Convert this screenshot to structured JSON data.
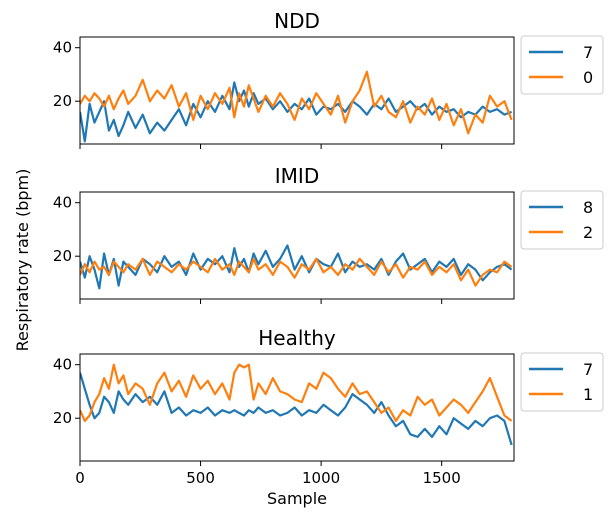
{
  "chart_data": [
    {
      "type": "line",
      "title": "NDD",
      "xlim": [
        0,
        1800
      ],
      "ylim": [
        4,
        44
      ],
      "yticks": [
        20,
        40
      ],
      "series": [
        {
          "name": "7",
          "color": "#1f77b4",
          "x": [
            0,
            20,
            40,
            60,
            80,
            100,
            120,
            140,
            160,
            180,
            200,
            230,
            260,
            290,
            320,
            350,
            380,
            410,
            440,
            470,
            500,
            530,
            560,
            590,
            620,
            640,
            660,
            680,
            700,
            720,
            740,
            770,
            800,
            830,
            860,
            890,
            920,
            950,
            980,
            1010,
            1040,
            1070,
            1100,
            1130,
            1160,
            1190,
            1220,
            1250,
            1280,
            1310,
            1340,
            1370,
            1400,
            1430,
            1460,
            1490,
            1520,
            1550,
            1580,
            1610,
            1640,
            1670,
            1700,
            1730,
            1760,
            1790
          ],
          "y": [
            16,
            5,
            19,
            12,
            16,
            20,
            9,
            13,
            7,
            11,
            16,
            10,
            15,
            8,
            12,
            9,
            13,
            17,
            11,
            19,
            14,
            20,
            16,
            22,
            17,
            27,
            20,
            24,
            18,
            23,
            19,
            21,
            17,
            20,
            16,
            19,
            17,
            21,
            15,
            18,
            17,
            19,
            16,
            20,
            18,
            15,
            19,
            17,
            21,
            16,
            18,
            20,
            17,
            19,
            15,
            18,
            16,
            17,
            14,
            16,
            15,
            18,
            16,
            17,
            15,
            16
          ]
        },
        {
          "name": "0",
          "color": "#ff7f0e",
          "x": [
            0,
            20,
            40,
            60,
            80,
            100,
            120,
            140,
            160,
            180,
            200,
            230,
            260,
            290,
            320,
            350,
            380,
            410,
            440,
            470,
            500,
            530,
            560,
            590,
            620,
            640,
            660,
            680,
            700,
            720,
            740,
            770,
            800,
            830,
            860,
            890,
            920,
            950,
            980,
            1010,
            1040,
            1070,
            1100,
            1130,
            1160,
            1190,
            1220,
            1250,
            1280,
            1310,
            1340,
            1370,
            1400,
            1430,
            1460,
            1490,
            1520,
            1550,
            1580,
            1610,
            1640,
            1670,
            1700,
            1730,
            1760,
            1790
          ],
          "y": [
            19,
            22,
            20,
            23,
            21,
            18,
            22,
            17,
            21,
            24,
            19,
            22,
            28,
            20,
            24,
            21,
            26,
            18,
            23,
            13,
            22,
            17,
            23,
            19,
            25,
            14,
            23,
            18,
            26,
            21,
            16,
            22,
            18,
            23,
            19,
            13,
            21,
            17,
            23,
            19,
            15,
            22,
            12,
            20,
            24,
            31,
            18,
            22,
            16,
            14,
            20,
            12,
            18,
            15,
            21,
            13,
            19,
            11,
            17,
            8,
            15,
            12,
            22,
            18,
            20,
            13
          ]
        }
      ]
    },
    {
      "type": "line",
      "title": "IMID",
      "xlim": [
        0,
        1800
      ],
      "ylim": [
        4,
        44
      ],
      "yticks": [
        20,
        40
      ],
      "series": [
        {
          "name": "8",
          "color": "#1f77b4",
          "x": [
            0,
            20,
            40,
            60,
            80,
            100,
            120,
            140,
            160,
            180,
            200,
            230,
            260,
            290,
            320,
            350,
            380,
            410,
            440,
            470,
            500,
            530,
            560,
            590,
            620,
            640,
            660,
            680,
            700,
            720,
            740,
            770,
            800,
            830,
            860,
            890,
            920,
            950,
            980,
            1010,
            1040,
            1070,
            1100,
            1130,
            1160,
            1190,
            1220,
            1250,
            1280,
            1310,
            1340,
            1370,
            1400,
            1430,
            1460,
            1490,
            1520,
            1550,
            1580,
            1610,
            1640,
            1670,
            1700,
            1730,
            1760,
            1790
          ],
          "y": [
            18,
            12,
            20,
            15,
            8,
            21,
            13,
            19,
            9,
            18,
            16,
            13,
            19,
            17,
            14,
            20,
            16,
            18,
            13,
            21,
            15,
            19,
            17,
            20,
            14,
            23,
            16,
            19,
            14,
            21,
            17,
            22,
            16,
            19,
            24,
            15,
            20,
            14,
            19,
            17,
            16,
            21,
            14,
            18,
            16,
            17,
            15,
            19,
            13,
            18,
            21,
            15,
            17,
            19,
            14,
            18,
            16,
            19,
            13,
            17,
            15,
            11,
            14,
            16,
            17,
            15
          ]
        },
        {
          "name": "2",
          "color": "#ff7f0e",
          "x": [
            0,
            20,
            40,
            60,
            80,
            100,
            120,
            140,
            160,
            180,
            200,
            230,
            260,
            290,
            320,
            350,
            380,
            410,
            440,
            470,
            500,
            530,
            560,
            590,
            620,
            640,
            660,
            680,
            700,
            720,
            740,
            770,
            800,
            830,
            860,
            890,
            920,
            950,
            980,
            1010,
            1040,
            1070,
            1100,
            1130,
            1160,
            1190,
            1220,
            1250,
            1280,
            1310,
            1340,
            1370,
            1400,
            1430,
            1460,
            1490,
            1520,
            1550,
            1580,
            1610,
            1640,
            1670,
            1700,
            1730,
            1760,
            1790
          ],
          "y": [
            13,
            17,
            14,
            18,
            15,
            16,
            13,
            18,
            16,
            14,
            17,
            15,
            19,
            13,
            18,
            16,
            14,
            17,
            15,
            18,
            16,
            14,
            19,
            15,
            17,
            13,
            18,
            16,
            14,
            19,
            15,
            17,
            13,
            18,
            16,
            12,
            17,
            15,
            19,
            14,
            16,
            13,
            17,
            15,
            19,
            16,
            13,
            18,
            14,
            17,
            12,
            16,
            15,
            18,
            13,
            16,
            14,
            17,
            11,
            15,
            9,
            13,
            15,
            14,
            18,
            16
          ]
        }
      ]
    },
    {
      "type": "line",
      "title": "Healthy",
      "xlabel": "Sample",
      "xlim": [
        0,
        1800
      ],
      "ylim": [
        4,
        44
      ],
      "xticks": [
        0,
        500,
        1000,
        1500
      ],
      "yticks": [
        20,
        40
      ],
      "series": [
        {
          "name": "7",
          "color": "#1f77b4",
          "x": [
            0,
            20,
            40,
            60,
            80,
            100,
            120,
            140,
            160,
            180,
            200,
            230,
            260,
            290,
            320,
            350,
            380,
            410,
            440,
            470,
            500,
            530,
            560,
            590,
            620,
            640,
            660,
            680,
            700,
            720,
            740,
            770,
            800,
            830,
            860,
            890,
            920,
            950,
            980,
            1010,
            1040,
            1070,
            1100,
            1130,
            1160,
            1190,
            1220,
            1250,
            1280,
            1310,
            1340,
            1370,
            1400,
            1430,
            1460,
            1490,
            1520,
            1550,
            1580,
            1610,
            1640,
            1670,
            1700,
            1730,
            1760,
            1790
          ],
          "y": [
            37,
            31,
            25,
            20,
            22,
            28,
            26,
            22,
            30,
            27,
            25,
            29,
            26,
            28,
            25,
            30,
            22,
            24,
            21,
            23,
            22,
            24,
            21,
            23,
            22,
            23,
            22,
            21,
            23,
            22,
            24,
            22,
            23,
            21,
            22,
            24,
            21,
            23,
            22,
            25,
            23,
            21,
            24,
            29,
            27,
            25,
            22,
            26,
            21,
            17,
            19,
            14,
            13,
            16,
            13,
            17,
            14,
            20,
            18,
            16,
            19,
            17,
            20,
            21,
            19,
            10
          ]
        },
        {
          "name": "1",
          "color": "#ff7f0e",
          "x": [
            0,
            20,
            40,
            60,
            80,
            100,
            120,
            140,
            160,
            180,
            200,
            230,
            260,
            290,
            320,
            350,
            380,
            410,
            440,
            470,
            500,
            530,
            560,
            590,
            620,
            640,
            660,
            680,
            700,
            720,
            740,
            770,
            800,
            830,
            860,
            890,
            920,
            950,
            980,
            1010,
            1040,
            1070,
            1100,
            1130,
            1160,
            1190,
            1220,
            1250,
            1280,
            1310,
            1340,
            1370,
            1400,
            1430,
            1460,
            1490,
            1520,
            1550,
            1580,
            1610,
            1640,
            1670,
            1700,
            1730,
            1760,
            1790
          ],
          "y": [
            23,
            19,
            21,
            26,
            29,
            35,
            31,
            40,
            33,
            36,
            29,
            33,
            31,
            25,
            33,
            37,
            30,
            34,
            28,
            36,
            31,
            34,
            29,
            33,
            27,
            37,
            40,
            39,
            40,
            27,
            33,
            29,
            35,
            30,
            29,
            27,
            26,
            33,
            31,
            37,
            35,
            31,
            28,
            33,
            29,
            30,
            26,
            22,
            24,
            19,
            23,
            21,
            28,
            25,
            27,
            21,
            24,
            27,
            25,
            22,
            26,
            30,
            35,
            28,
            21,
            19
          ]
        }
      ]
    }
  ],
  "shared": {
    "ylabel": "Respiratory rate (bpm)"
  }
}
